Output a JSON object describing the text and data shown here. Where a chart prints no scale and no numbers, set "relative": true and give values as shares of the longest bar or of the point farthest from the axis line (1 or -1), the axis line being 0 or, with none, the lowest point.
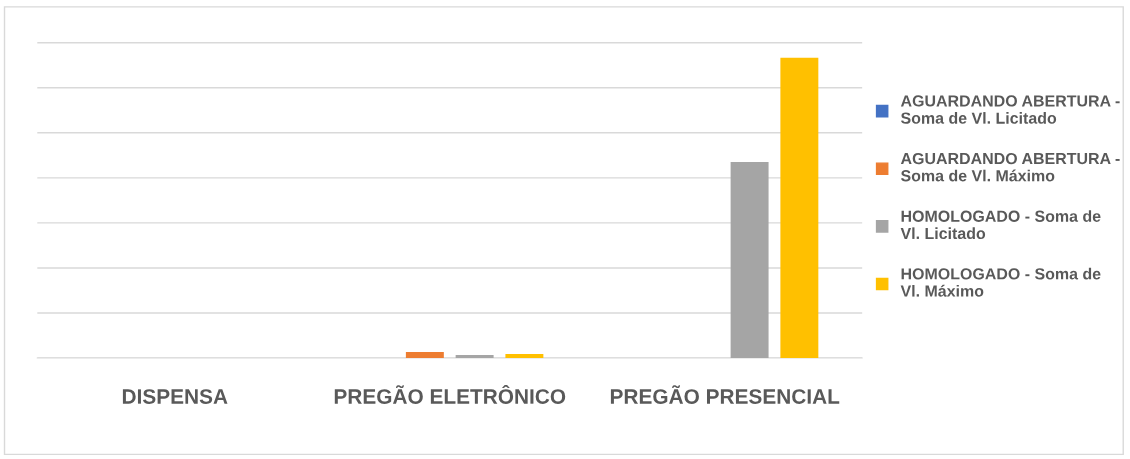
{
  "chart_data": {
    "type": "bar",
    "relative": true,
    "categories": [
      "DISPENSA",
      "PREGÃO ELETRÔNICO",
      "PREGÃO PRESENCIAL"
    ],
    "series": [
      {
        "name": "AGUARDANDO ABERTURA - Soma de Vl. Licitado",
        "color": "#4472c4",
        "values": [
          0,
          0,
          0
        ]
      },
      {
        "name": "AGUARDANDO ABERTURA - Soma de Vl. Máximo",
        "color": "#ed7d31",
        "values": [
          0,
          0.02,
          0
        ]
      },
      {
        "name": "HOMOLOGADO - Soma de Vl. Licitado",
        "color": "#a5a5a5",
        "values": [
          0,
          0.01,
          0.653
        ]
      },
      {
        "name": "HOMOLOGADO - Soma de Vl. Máximo",
        "color": "#ffc000",
        "values": [
          0,
          0.013,
          1
        ]
      }
    ],
    "grid": "y",
    "legend": "right"
  }
}
